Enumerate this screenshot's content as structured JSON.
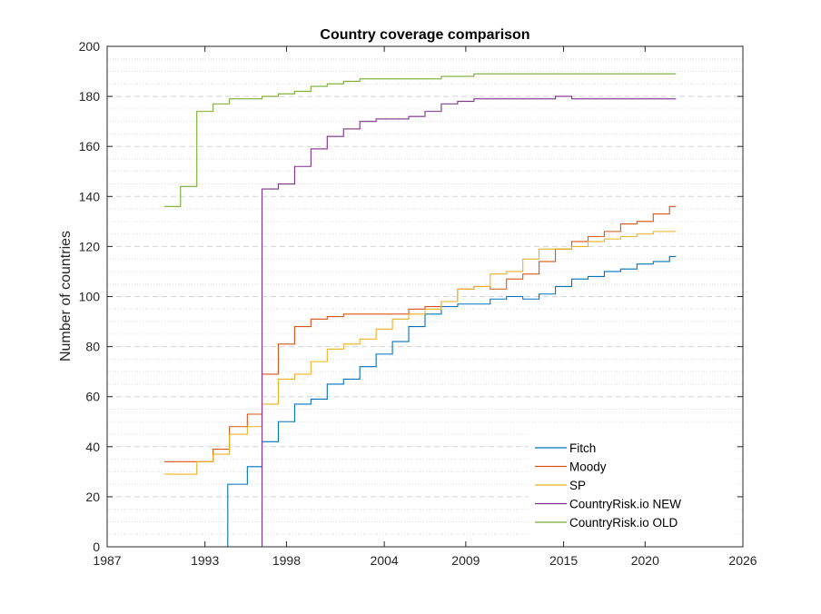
{
  "chart_data": {
    "type": "line",
    "title": "Country coverage comparison",
    "xlabel": "",
    "ylabel": "Number of countries",
    "xlim": [
      1987,
      2026
    ],
    "ylim": [
      0,
      200
    ],
    "xticks": [
      1987,
      1993,
      1998,
      2004,
      2009,
      2015,
      2020,
      2026
    ],
    "yticks": [
      0,
      20,
      40,
      60,
      80,
      100,
      120,
      140,
      160,
      180,
      200
    ],
    "step": true,
    "grid": "major y dashed, minor y dotted",
    "legend_position": "bottom-right",
    "series": [
      {
        "name": "Fitch",
        "color": "#0072BD",
        "x": [
          1994.4,
          1994.4,
          1995.6,
          1996.5,
          1997.5,
          1998.5,
          1999.5,
          2000.5,
          2001.5,
          2002.5,
          2003.5,
          2004.5,
          2005.5,
          2006.5,
          2007.5,
          2008.5,
          2009.5,
          2010.5,
          2011.5,
          2012.5,
          2013.5,
          2014.5,
          2015.5,
          2016.5,
          2017.5,
          2018.5,
          2019.5,
          2020.5,
          2021.5,
          2021.9
        ],
        "y": [
          0,
          25,
          32,
          42,
          50,
          57,
          59,
          65,
          67,
          72,
          77,
          82,
          88,
          93,
          96,
          97,
          97,
          99,
          100,
          99,
          101,
          104,
          107,
          108,
          110,
          111,
          113,
          114,
          116,
          116
        ]
      },
      {
        "name": "Moody",
        "color": "#D95319",
        "x": [
          1990.5,
          1993.5,
          1994.5,
          1995.6,
          1996.5,
          1997.5,
          1998.5,
          1999.5,
          2000.5,
          2001.5,
          2002.5,
          2003.5,
          2004.5,
          2005.5,
          2006.5,
          2007.5,
          2008.5,
          2009.5,
          2010.5,
          2011.5,
          2012.5,
          2013.5,
          2014.5,
          2015.5,
          2016.5,
          2017.5,
          2018.5,
          2019.5,
          2020.5,
          2021.5,
          2021.9
        ],
        "y": [
          34,
          39,
          48,
          53,
          69,
          81,
          88,
          91,
          92,
          93,
          93,
          93,
          93,
          95,
          96,
          98,
          103,
          104,
          103,
          107,
          109,
          114,
          119,
          122,
          124,
          126,
          129,
          130,
          133,
          136,
          136
        ]
      },
      {
        "name": "SP",
        "color": "#EDB120",
        "x": [
          1990.5,
          1992.5,
          1993.5,
          1994.5,
          1995.6,
          1996.5,
          1997.5,
          1998.5,
          1999.5,
          2000.5,
          2001.5,
          2002.5,
          2003.5,
          2004.5,
          2005.5,
          2006.5,
          2007.5,
          2008.5,
          2009.5,
          2010.5,
          2011.5,
          2012.5,
          2013.5,
          2014.5,
          2015.5,
          2016.5,
          2017.5,
          2018.5,
          2019.5,
          2020.5,
          2021.5,
          2021.9
        ],
        "y": [
          29,
          34,
          37,
          45,
          48,
          57,
          67,
          69,
          74,
          79,
          81,
          83,
          87,
          91,
          93,
          95,
          98,
          103,
          104,
          109,
          110,
          115,
          119,
          119,
          120,
          122,
          123,
          124,
          125,
          126,
          126,
          126
        ]
      },
      {
        "name": "CountryRisk.io NEW",
        "color": "#7E2F8E",
        "x": [
          1990.5,
          1996.5,
          1996.5,
          1997.5,
          1998.5,
          1999.5,
          2000.5,
          2001.5,
          2002.5,
          2003.5,
          2004.5,
          2005.5,
          2006.5,
          2007.5,
          2008.5,
          2009.5,
          2010.5,
          2011.5,
          2012.5,
          2013.5,
          2014.5,
          2015.5,
          2016.5,
          2017.5,
          2018.5,
          2019.5,
          2020.5,
          2021.5,
          2021.9
        ],
        "y": [
          0,
          0,
          143,
          145,
          152,
          159,
          164,
          167,
          170,
          171,
          171,
          172,
          174,
          177,
          178,
          179,
          179,
          179,
          179,
          179,
          180,
          179,
          179,
          179,
          179,
          179,
          179,
          179,
          179
        ]
      },
      {
        "name": "CountryRisk.io OLD",
        "color": "#77AC30",
        "x": [
          1990.5,
          1991.5,
          1992.5,
          1993.5,
          1994.5,
          1995.5,
          1996.5,
          1997.5,
          1998.5,
          1999.5,
          2000.5,
          2001.5,
          2002.5,
          2003.5,
          2004.5,
          2005.5,
          2006.5,
          2007.5,
          2008.5,
          2009.5,
          2010.5,
          2011.5,
          2012.5,
          2013.5,
          2014.5,
          2015.5,
          2016.5,
          2017.5,
          2018.5,
          2019.5,
          2020.5,
          2021.5,
          2021.9
        ],
        "y": [
          136,
          144,
          174,
          177,
          179,
          179,
          180,
          181,
          182,
          184,
          185,
          186,
          187,
          187,
          187,
          187,
          187,
          188,
          188,
          189,
          189,
          189,
          189,
          189,
          189,
          189,
          189,
          189,
          189,
          189,
          189,
          189,
          189
        ]
      }
    ]
  }
}
